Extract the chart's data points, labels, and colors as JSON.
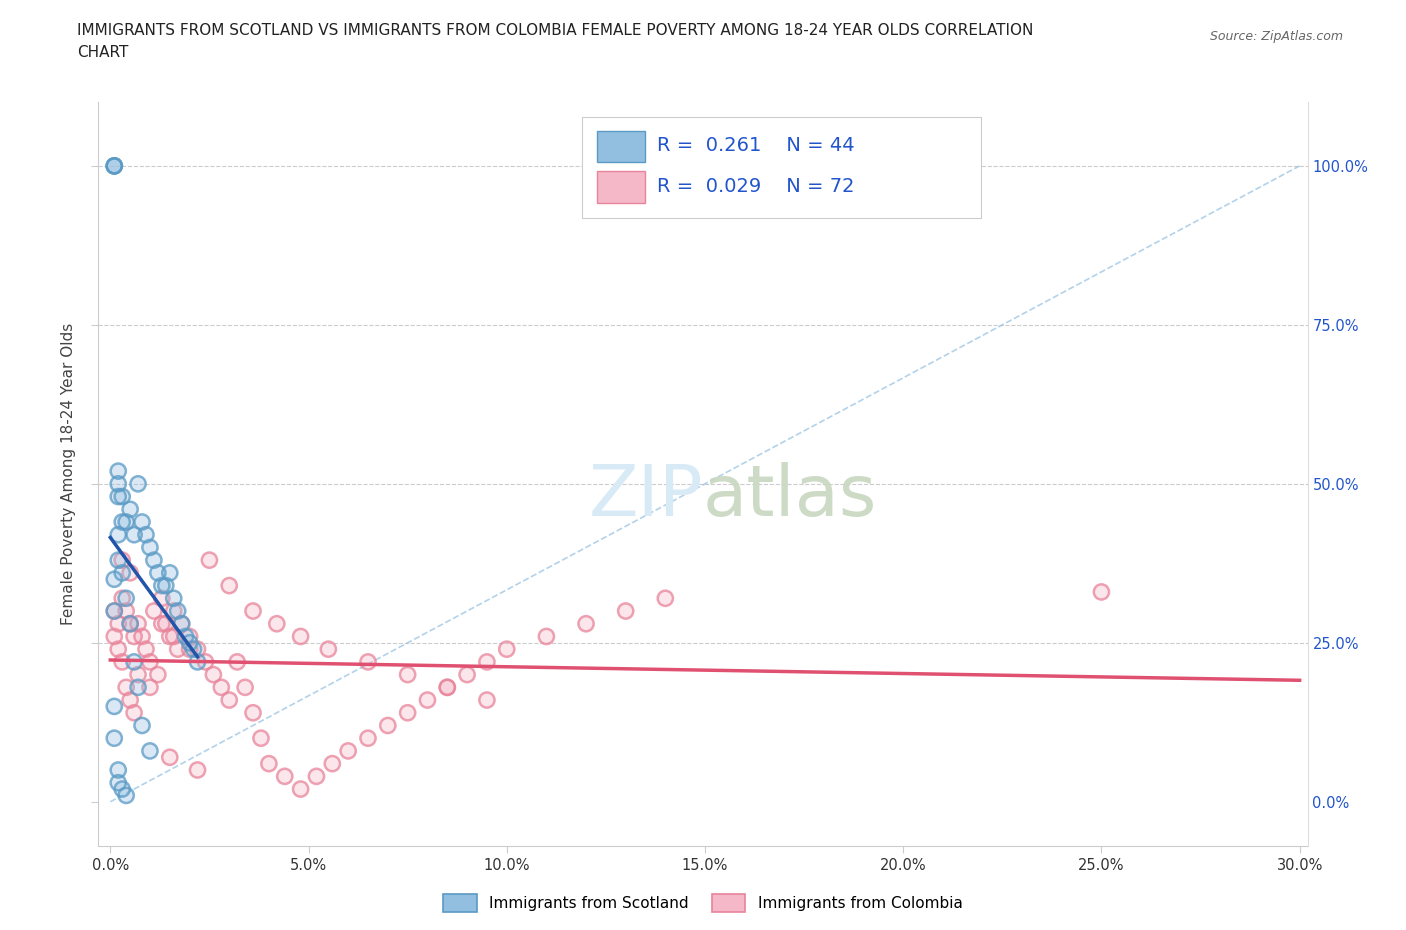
{
  "title_line1": "IMMIGRANTS FROM SCOTLAND VS IMMIGRANTS FROM COLOMBIA FEMALE POVERTY AMONG 18-24 YEAR OLDS CORRELATION",
  "title_line2": "CHART",
  "source": "Source: ZipAtlas.com",
  "ylabel": "Female Poverty Among 18-24 Year Olds",
  "xlim": [
    0.0,
    0.3
  ],
  "ylim": [
    0.0,
    1.05
  ],
  "scotland_color": "#92BFE0",
  "scotland_edge": "#5A9AC5",
  "colombia_color": "#F5B8C8",
  "colombia_edge": "#E8849A",
  "trend_scotland_color": "#2255AA",
  "trend_colombia_color": "#E05070",
  "diag_color": "#92BFE0",
  "scotland_R": 0.261,
  "scotland_N": 44,
  "colombia_R": 0.029,
  "colombia_N": 72,
  "legend_text_color": "#2255CC",
  "watermark_color": "#D8EAF5",
  "scotland_x": [
    0.001,
    0.001,
    0.001,
    0.002,
    0.002,
    0.002,
    0.001,
    0.001,
    0.002,
    0.002,
    0.003,
    0.003,
    0.003,
    0.004,
    0.004,
    0.005,
    0.005,
    0.006,
    0.006,
    0.007,
    0.007,
    0.008,
    0.008,
    0.009,
    0.01,
    0.01,
    0.011,
    0.012,
    0.013,
    0.014,
    0.015,
    0.016,
    0.017,
    0.018,
    0.019,
    0.02,
    0.021,
    0.022,
    0.001,
    0.001,
    0.002,
    0.002,
    0.003,
    0.004
  ],
  "scotland_y": [
    1.0,
    1.0,
    1.0,
    0.52,
    0.5,
    0.48,
    0.35,
    0.3,
    0.42,
    0.38,
    0.44,
    0.36,
    0.48,
    0.44,
    0.32,
    0.46,
    0.28,
    0.42,
    0.22,
    0.5,
    0.18,
    0.44,
    0.12,
    0.42,
    0.4,
    0.08,
    0.38,
    0.36,
    0.34,
    0.34,
    0.36,
    0.32,
    0.3,
    0.28,
    0.26,
    0.25,
    0.24,
    0.22,
    0.15,
    0.1,
    0.05,
    0.03,
    0.02,
    0.01
  ],
  "colombia_x": [
    0.001,
    0.001,
    0.002,
    0.002,
    0.003,
    0.003,
    0.004,
    0.004,
    0.005,
    0.005,
    0.006,
    0.006,
    0.007,
    0.008,
    0.009,
    0.01,
    0.011,
    0.012,
    0.013,
    0.014,
    0.015,
    0.016,
    0.017,
    0.018,
    0.02,
    0.022,
    0.024,
    0.026,
    0.028,
    0.03,
    0.032,
    0.034,
    0.036,
    0.038,
    0.04,
    0.044,
    0.048,
    0.052,
    0.056,
    0.06,
    0.065,
    0.07,
    0.075,
    0.08,
    0.085,
    0.09,
    0.095,
    0.1,
    0.11,
    0.12,
    0.13,
    0.14,
    0.003,
    0.005,
    0.007,
    0.01,
    0.013,
    0.016,
    0.02,
    0.025,
    0.03,
    0.036,
    0.042,
    0.048,
    0.055,
    0.065,
    0.075,
    0.085,
    0.095,
    0.25,
    0.015,
    0.022
  ],
  "colombia_y": [
    0.3,
    0.26,
    0.28,
    0.24,
    0.32,
    0.22,
    0.3,
    0.18,
    0.28,
    0.16,
    0.26,
    0.14,
    0.28,
    0.26,
    0.24,
    0.22,
    0.3,
    0.2,
    0.32,
    0.28,
    0.26,
    0.3,
    0.24,
    0.28,
    0.26,
    0.24,
    0.22,
    0.2,
    0.18,
    0.16,
    0.22,
    0.18,
    0.14,
    0.1,
    0.06,
    0.04,
    0.02,
    0.04,
    0.06,
    0.08,
    0.1,
    0.12,
    0.14,
    0.16,
    0.18,
    0.2,
    0.22,
    0.24,
    0.26,
    0.28,
    0.3,
    0.32,
    0.38,
    0.36,
    0.2,
    0.18,
    0.28,
    0.26,
    0.24,
    0.38,
    0.34,
    0.3,
    0.28,
    0.26,
    0.24,
    0.22,
    0.2,
    0.18,
    0.16,
    0.33,
    0.07,
    0.05
  ]
}
